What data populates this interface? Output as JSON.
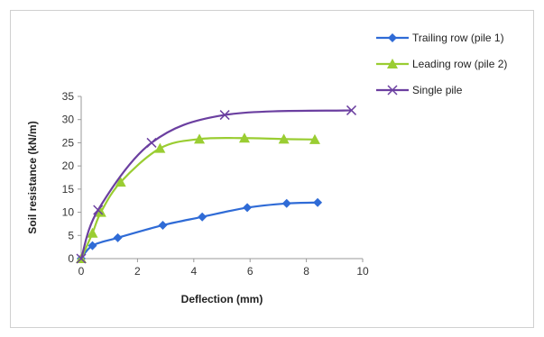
{
  "chart_data": {
    "type": "line",
    "title": "",
    "xlabel": "Deflection (mm)",
    "ylabel": "Soil resistance (kN/m)",
    "xlim": [
      0,
      10
    ],
    "ylim": [
      0,
      35
    ],
    "xticks": [
      0,
      2,
      4,
      6,
      8,
      10
    ],
    "yticks": [
      0,
      5,
      10,
      15,
      20,
      25,
      30,
      35
    ],
    "grid": false,
    "legend_position": "top-right",
    "series": [
      {
        "name": "Trailing row (pile 1)",
        "color": "#2f6bd6",
        "marker": "diamond",
        "points": [
          [
            0,
            0
          ],
          [
            0.4,
            2.8
          ],
          [
            1.3,
            4.5
          ],
          [
            2.9,
            7.2
          ],
          [
            4.3,
            9.0
          ],
          [
            5.9,
            11.0
          ],
          [
            7.3,
            11.9
          ],
          [
            8.4,
            12.1
          ]
        ]
      },
      {
        "name": "Leading row (pile 2)",
        "color": "#9acd32",
        "marker": "triangle",
        "points": [
          [
            0,
            0
          ],
          [
            0.4,
            5.5
          ],
          [
            0.7,
            10.0
          ],
          [
            1.4,
            16.5
          ],
          [
            2.8,
            23.8
          ],
          [
            4.2,
            25.8
          ],
          [
            5.8,
            26.0
          ],
          [
            7.2,
            25.8
          ],
          [
            8.3,
            25.7
          ]
        ]
      },
      {
        "name": "Single pile",
        "color": "#6b3fa0",
        "marker": "x",
        "points": [
          [
            0,
            0
          ],
          [
            0.6,
            10.5
          ],
          [
            2.5,
            25.0
          ],
          [
            5.1,
            31.0
          ],
          [
            9.6,
            32.0
          ]
        ]
      }
    ]
  }
}
